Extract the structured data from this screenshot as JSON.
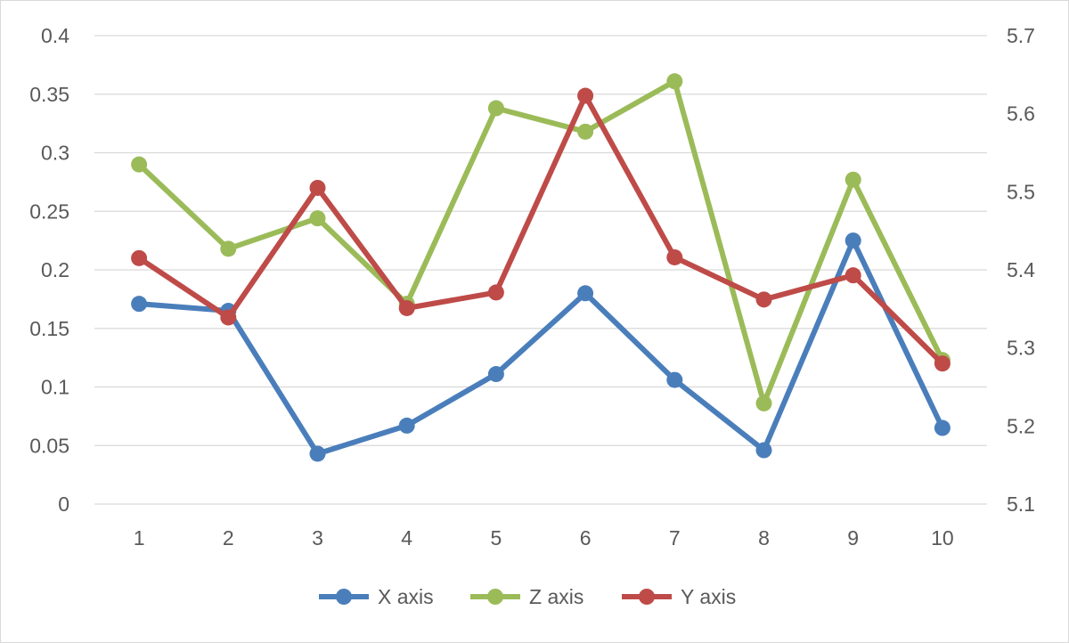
{
  "chart_data": {
    "type": "line",
    "title": "",
    "xlabel": "",
    "ylabel": "",
    "categories": [
      "1",
      "2",
      "3",
      "4",
      "5",
      "6",
      "7",
      "8",
      "9",
      "10"
    ],
    "y_left": {
      "min": 0,
      "max": 0.4,
      "ticks": [
        "0",
        "0.05",
        "0.1",
        "0.15",
        "0.2",
        "0.25",
        "0.3",
        "0.35",
        "0.4"
      ]
    },
    "y_right": {
      "min": 5.1,
      "max": 5.7,
      "ticks": [
        "5.1",
        "5.2",
        "5.3",
        "5.4",
        "5.5",
        "5.6",
        "5.7"
      ]
    },
    "grid": true,
    "legend_position": "bottom",
    "series": [
      {
        "name": "X axis",
        "axis": "left",
        "color": "#4a7ebb",
        "values": [
          0.171,
          0.165,
          0.043,
          0.067,
          0.111,
          0.18,
          0.106,
          0.046,
          0.225,
          0.065
        ]
      },
      {
        "name": "Z axis",
        "axis": "left",
        "color": "#9bbb59",
        "values": [
          0.29,
          0.218,
          0.244,
          0.171,
          0.338,
          0.318,
          0.361,
          0.086,
          0.277,
          0.123
        ]
      },
      {
        "name": "Y axis",
        "axis": "right",
        "color": "#be4b48",
        "values": [
          5.415,
          5.339,
          5.505,
          5.351,
          5.371,
          5.623,
          5.416,
          5.362,
          5.393,
          5.28
        ]
      }
    ]
  }
}
